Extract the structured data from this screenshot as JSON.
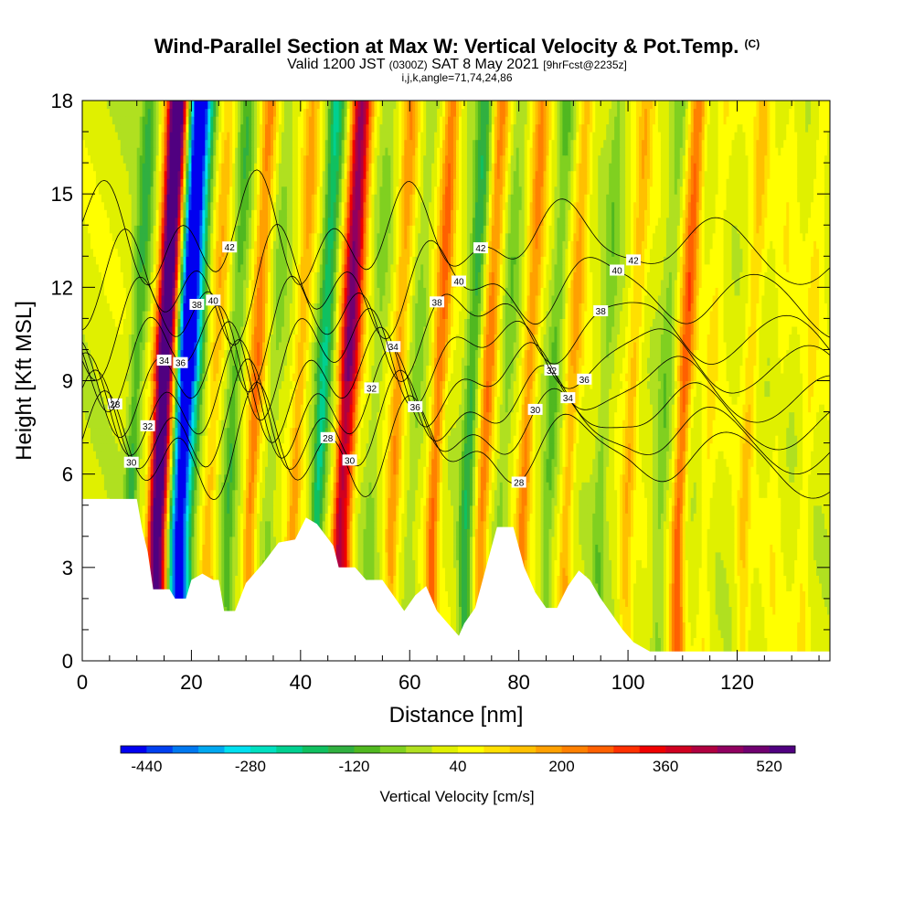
{
  "header": {
    "title": "Wind-Parallel Section at Max W: Vertical Velocity & Pot.Temp.",
    "title_unit": "(C)",
    "subtitle_valid": "Valid 1200 JST",
    "subtitle_utc": "(0300Z)",
    "subtitle_date": "SAT 8 May 2021",
    "subtitle_fcst": "[9hrFcst@2235z]",
    "params": "i,j,k,angle=71,74,24,86"
  },
  "chart_data": {
    "type": "heatmap",
    "xlabel": "Distance [nm]",
    "ylabel": "Height [Kft MSL]",
    "xlim": [
      0,
      137
    ],
    "ylim": [
      0,
      18
    ],
    "x_ticks": [
      "0",
      "20",
      "40",
      "60",
      "80",
      "100",
      "120"
    ],
    "y_ticks": [
      "0",
      "3",
      "6",
      "9",
      "12",
      "15",
      "18"
    ],
    "colorbar": {
      "label": "Vertical Velocity [cm/s]",
      "ticks": [
        "-440",
        "-280",
        "-120",
        "40",
        "200",
        "360",
        "520"
      ],
      "range": [
        -480,
        560
      ],
      "step": 40,
      "colors": [
        "#0000f0",
        "#0040f0",
        "#0078f0",
        "#00a8f0",
        "#00e0f0",
        "#00e0c0",
        "#00d090",
        "#10c060",
        "#30b040",
        "#50b820",
        "#80d020",
        "#b0e020",
        "#e0f000",
        "#ffff00",
        "#ffe000",
        "#ffc000",
        "#ffa000",
        "#ff8000",
        "#ff6000",
        "#ff3000",
        "#f00000",
        "#d00020",
        "#b00040",
        "#900060",
        "#700070",
        "#500080"
      ]
    },
    "velocity_columns": [
      {
        "x": 12.8,
        "w": 320
      },
      {
        "x": 14.0,
        "w": 400
      },
      {
        "x": 15.3,
        "w": 100
      },
      {
        "x": 16.6,
        "w": -300
      },
      {
        "x": 18.0,
        "w": -420
      },
      {
        "x": 19.5,
        "w": -160
      },
      {
        "x": 8.5,
        "w": -140
      },
      {
        "x": 23.0,
        "w": 120
      },
      {
        "x": 26.5,
        "w": -120
      },
      {
        "x": 30.5,
        "w": 200
      },
      {
        "x": 34.0,
        "w": -60
      },
      {
        "x": 38.5,
        "w": 140
      },
      {
        "x": 42.8,
        "w": -220
      },
      {
        "x": 46.8,
        "w": 340
      },
      {
        "x": 48.3,
        "w": 240
      },
      {
        "x": 52.5,
        "w": -60
      },
      {
        "x": 56.5,
        "w": 160
      },
      {
        "x": 60.0,
        "w": -60
      },
      {
        "x": 64.0,
        "w": 220
      },
      {
        "x": 70.0,
        "w": -160
      },
      {
        "x": 73.0,
        "w": 200
      },
      {
        "x": 76.5,
        "w": -80
      },
      {
        "x": 80.5,
        "w": 180
      },
      {
        "x": 85.0,
        "w": -100
      },
      {
        "x": 88.5,
        "w": 140
      },
      {
        "x": 94.5,
        "w": -80
      },
      {
        "x": 99.5,
        "w": 120
      },
      {
        "x": 105.5,
        "w": -80
      },
      {
        "x": 109.0,
        "w": 240
      },
      {
        "x": 114.0,
        "w": 60
      },
      {
        "x": 121.0,
        "w": 100
      },
      {
        "x": 126.5,
        "w": 40
      },
      {
        "x": 132.0,
        "w": 60
      }
    ],
    "theta_contours": [
      {
        "base": 6.8,
        "label": "28"
      },
      {
        "base": 7.5,
        "label": "30"
      },
      {
        "base": 8.2,
        "label": "32"
      },
      {
        "base": 9.0,
        "label": "34"
      },
      {
        "base": 9.9,
        "label": "36"
      },
      {
        "base": 10.8,
        "label": "38"
      },
      {
        "base": 12.0,
        "label": "40"
      },
      {
        "base": 13.6,
        "label": "42"
      }
    ],
    "terrain": [
      [
        0,
        5.2
      ],
      [
        5,
        5.2
      ],
      [
        10,
        5.2
      ],
      [
        11,
        4.2
      ],
      [
        12,
        3.5
      ],
      [
        13,
        2.3
      ],
      [
        16,
        2.3
      ],
      [
        17,
        2.0
      ],
      [
        19,
        2.0
      ],
      [
        20,
        2.6
      ],
      [
        22,
        2.8
      ],
      [
        24,
        2.6
      ],
      [
        25,
        2.6
      ],
      [
        26,
        1.6
      ],
      [
        28,
        1.6
      ],
      [
        30,
        2.5
      ],
      [
        33,
        3.1
      ],
      [
        36,
        3.8
      ],
      [
        39,
        3.9
      ],
      [
        41,
        4.6
      ],
      [
        43,
        4.4
      ],
      [
        46,
        3.7
      ],
      [
        47,
        3.0
      ],
      [
        50,
        3.0
      ],
      [
        52,
        2.6
      ],
      [
        55,
        2.6
      ],
      [
        57,
        2.1
      ],
      [
        59,
        1.6
      ],
      [
        61,
        2.1
      ],
      [
        63,
        2.4
      ],
      [
        65,
        1.6
      ],
      [
        67,
        1.2
      ],
      [
        69,
        0.8
      ],
      [
        70,
        1.2
      ],
      [
        72,
        1.7
      ],
      [
        74,
        3.0
      ],
      [
        76,
        4.3
      ],
      [
        79,
        4.3
      ],
      [
        81,
        3.0
      ],
      [
        83,
        2.2
      ],
      [
        85,
        1.7
      ],
      [
        87,
        1.7
      ],
      [
        89,
        2.4
      ],
      [
        91,
        2.9
      ],
      [
        93,
        2.6
      ],
      [
        95,
        2.0
      ],
      [
        97,
        1.5
      ],
      [
        99,
        1.0
      ],
      [
        101,
        0.6
      ],
      [
        104,
        0.3
      ],
      [
        137,
        0.3
      ]
    ]
  }
}
